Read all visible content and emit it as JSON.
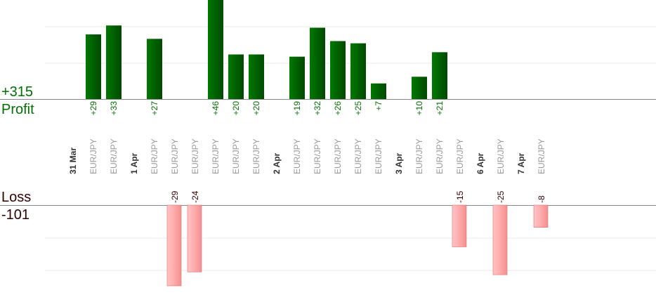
{
  "summary": {
    "profit_total": "+315",
    "profit_label": "Profit",
    "loss_label": "Loss",
    "loss_total": "-101"
  },
  "colors": {
    "profit_bar": "#006400",
    "profit_text": "#007000",
    "loss_bar": "#ffaaaa",
    "loss_bar_edge": "#e07070",
    "loss_text": "#330000",
    "pair_text": "#999999",
    "date_text": "#333333",
    "grid": "#e8e8e8",
    "axis": "#888888"
  },
  "chart_data": {
    "type": "bar",
    "title": "",
    "xlabel": "",
    "ylabel": "",
    "categories": [
      {
        "kind": "date",
        "label": "31 Mar"
      },
      {
        "kind": "trade",
        "label": "EUR/JPY",
        "value": 29,
        "value_label": "+29"
      },
      {
        "kind": "trade",
        "label": "EUR/JPY",
        "value": 33,
        "value_label": "+33"
      },
      {
        "kind": "date",
        "label": "1 Apr"
      },
      {
        "kind": "trade",
        "label": "EUR/JPY",
        "value": 27,
        "value_label": "+27"
      },
      {
        "kind": "trade",
        "label": "EUR/JPY",
        "value": -29,
        "value_label": "-29"
      },
      {
        "kind": "trade",
        "label": "EUR/JPY",
        "value": -24,
        "value_label": "-24"
      },
      {
        "kind": "trade",
        "label": "EUR/JPY",
        "value": 46,
        "value_label": "+46"
      },
      {
        "kind": "trade",
        "label": "EUR/JPY",
        "value": 20,
        "value_label": "+20"
      },
      {
        "kind": "trade",
        "label": "EUR/JPY",
        "value": 20,
        "value_label": "+20"
      },
      {
        "kind": "date",
        "label": "2 Apr"
      },
      {
        "kind": "trade",
        "label": "EUR/JPY",
        "value": 19,
        "value_label": "+19"
      },
      {
        "kind": "trade",
        "label": "EUR/JPY",
        "value": 32,
        "value_label": "+32"
      },
      {
        "kind": "trade",
        "label": "EUR/JPY",
        "value": 26,
        "value_label": "+26"
      },
      {
        "kind": "trade",
        "label": "EUR/JPY",
        "value": 25,
        "value_label": "+25"
      },
      {
        "kind": "trade",
        "label": "EUR/JPY",
        "value": 7,
        "value_label": "+7"
      },
      {
        "kind": "date",
        "label": "3 Apr"
      },
      {
        "kind": "trade",
        "label": "EUR/JPY",
        "value": 10,
        "value_label": "+10"
      },
      {
        "kind": "trade",
        "label": "EUR/JPY",
        "value": 21,
        "value_label": "+21"
      },
      {
        "kind": "trade",
        "label": "EUR/JPY",
        "value": -15,
        "value_label": "-15"
      },
      {
        "kind": "date",
        "label": "6 Apr"
      },
      {
        "kind": "trade",
        "label": "EUR/JPY",
        "value": -25,
        "value_label": "-25"
      },
      {
        "kind": "date",
        "label": "7 Apr"
      },
      {
        "kind": "trade",
        "label": "EUR/JPY",
        "value": -8,
        "value_label": "-8"
      }
    ],
    "grid": true,
    "legend": "none"
  }
}
